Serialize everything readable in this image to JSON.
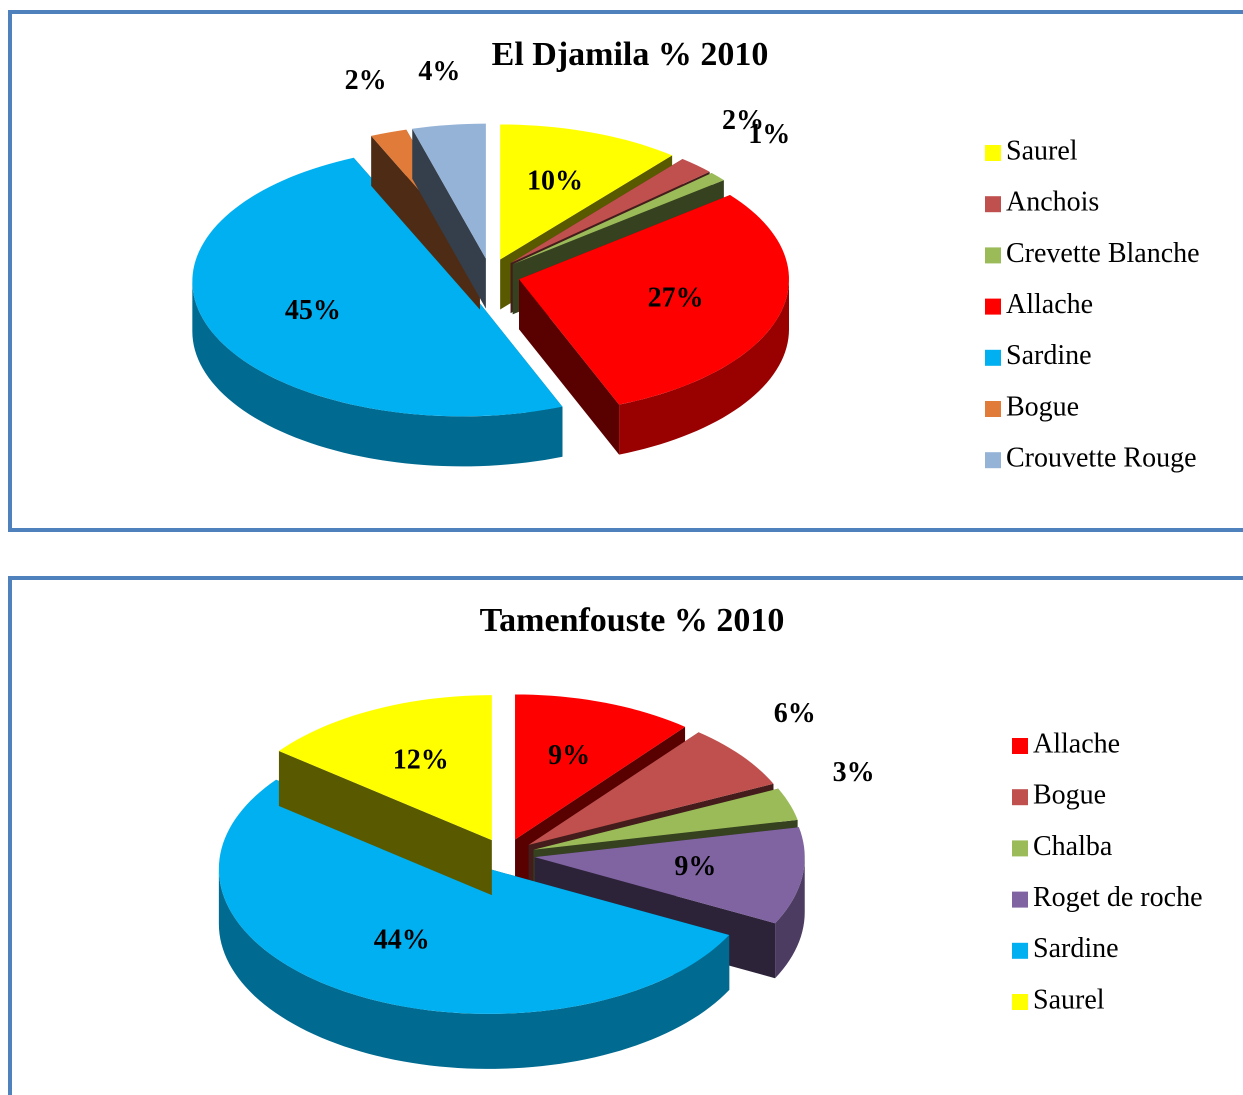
{
  "chart_data": [
    {
      "type": "pie",
      "title": "El Djamila % 2010",
      "categories": [
        "Saurel",
        "Anchois",
        "Crevette Blanche",
        "Allache",
        "Sardine",
        "Bogue",
        "Crouvette Rouge"
      ],
      "values": [
        10,
        2,
        1,
        27,
        45,
        2,
        4
      ],
      "value_labels": [
        "10%",
        "2%",
        "1%",
        "27%",
        "45%",
        "2%",
        "4%"
      ],
      "colors": [
        "#ffff00",
        "#c0504d",
        "#9bbb59",
        "#ff0000",
        "#00b0f0",
        "#e07b39",
        "#95b3d7"
      ]
    },
    {
      "type": "pie",
      "title": "Tamenfouste % 2010",
      "categories": [
        "Allache",
        "Bogue",
        "Chalba",
        "Roget de roche",
        "Sardine",
        "Saurel"
      ],
      "values": [
        9,
        6,
        3,
        9,
        44,
        12
      ],
      "value_labels": [
        "9%",
        "6%",
        "3%",
        "9%",
        "44%",
        "12%"
      ],
      "colors": [
        "#ff0000",
        "#c0504d",
        "#9bbb59",
        "#8064a2",
        "#00b0f0",
        "#ffff00"
      ]
    }
  ]
}
